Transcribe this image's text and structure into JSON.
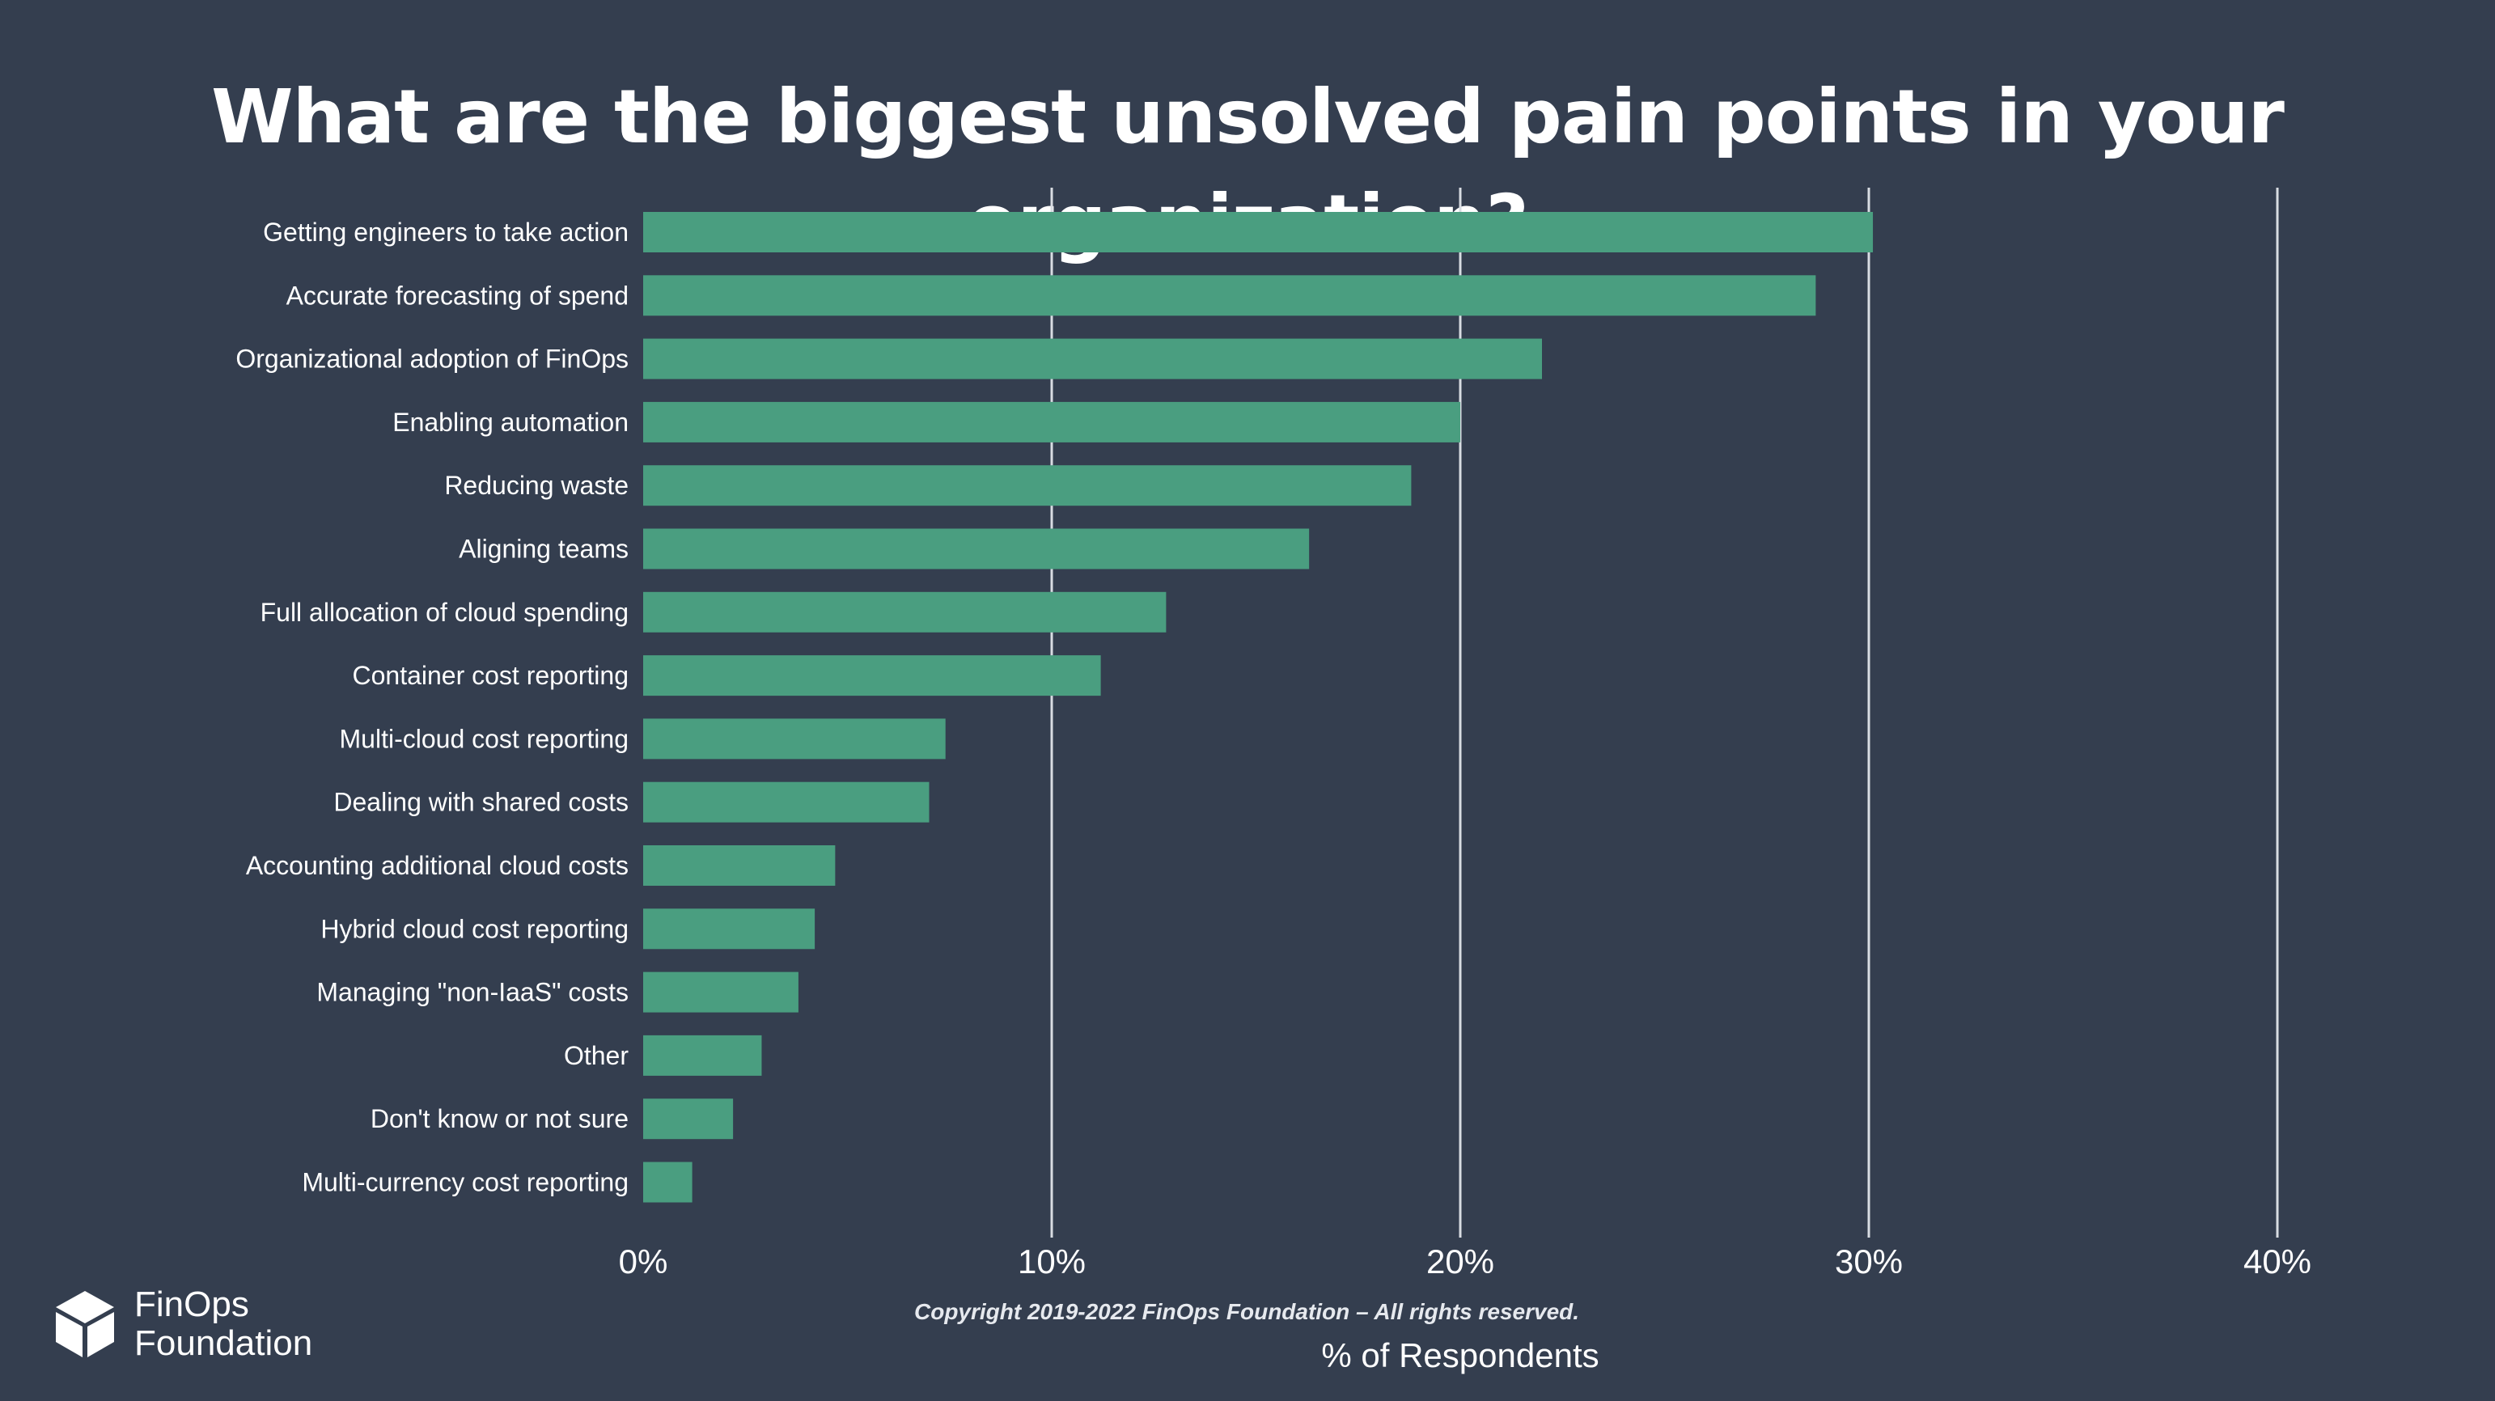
{
  "chart_data": {
    "type": "bar",
    "orientation": "horizontal",
    "title": "What are the biggest unsolved pain points in your organization?",
    "xlabel": "% of Respondents",
    "ylabel": "",
    "xlim": [
      0,
      40
    ],
    "x_ticks": [
      0,
      10,
      20,
      30,
      40
    ],
    "x_tick_labels": [
      "0%",
      "10%",
      "20%",
      "30%",
      "40%"
    ],
    "grid": "vertical",
    "categories": [
      "Getting engineers to take action",
      "Accurate forecasting of spend",
      "Organizational adoption of FinOps",
      "Enabling automation",
      "Reducing waste",
      "Aligning teams",
      "Full allocation of cloud spending",
      "Container cost reporting",
      "Multi-cloud cost reporting",
      "Dealing with shared costs",
      "Accounting additional cloud costs",
      "Hybrid cloud cost reporting",
      "Managing \"non-IaaS\" costs",
      "Other",
      "Don't know or not sure",
      "Multi-currency cost reporting"
    ],
    "values": [
      30.1,
      28.7,
      22.0,
      20.0,
      18.8,
      16.3,
      12.8,
      11.2,
      7.4,
      7.0,
      4.7,
      4.2,
      3.8,
      2.9,
      2.2,
      1.2
    ],
    "bar_color": "#4a9e80",
    "grid_color": "#d8dce2"
  },
  "footer": {
    "copyright": "Copyright 2019-2022 FinOps Foundation – All rights reserved.",
    "logo_line1": "FinOps",
    "logo_line2": "Foundation"
  },
  "colors": {
    "background": "#343e4f",
    "text": "#ffffff"
  },
  "icons": {
    "logo": "cube-icon"
  }
}
